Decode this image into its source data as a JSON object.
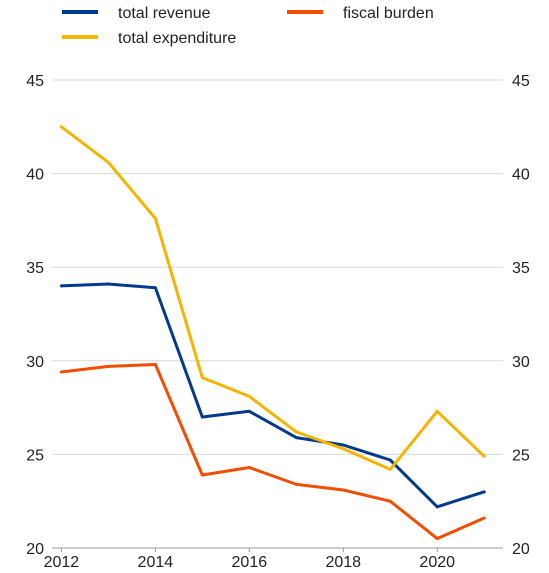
{
  "chart_data": {
    "type": "line",
    "x": [
      2012,
      2013,
      2014,
      2015,
      2016,
      2017,
      2018,
      2019,
      2020,
      2021
    ],
    "x_ticks": [
      "2012",
      "2014",
      "2016",
      "2018",
      "2020"
    ],
    "y_ticks": [
      "20",
      "25",
      "30",
      "35",
      "40",
      "45"
    ],
    "ylim": [
      20,
      45
    ],
    "xlim": [
      2011.8,
      2021.4
    ],
    "grid": true,
    "legend_position": "top",
    "series": [
      {
        "name": "total revenue",
        "color": "#003a8c",
        "values": [
          34.0,
          34.1,
          33.9,
          27.0,
          27.3,
          25.9,
          25.5,
          24.7,
          22.2,
          23.0
        ]
      },
      {
        "name": "total expenditure",
        "color": "#f5b400",
        "values": [
          42.5,
          40.6,
          37.6,
          29.1,
          28.1,
          26.2,
          25.3,
          24.2,
          27.3,
          24.9
        ]
      },
      {
        "name": "fiscal burden",
        "color": "#f04e00",
        "values": [
          29.4,
          29.7,
          29.8,
          23.9,
          24.3,
          23.4,
          23.1,
          22.5,
          20.5,
          21.6
        ]
      }
    ]
  }
}
